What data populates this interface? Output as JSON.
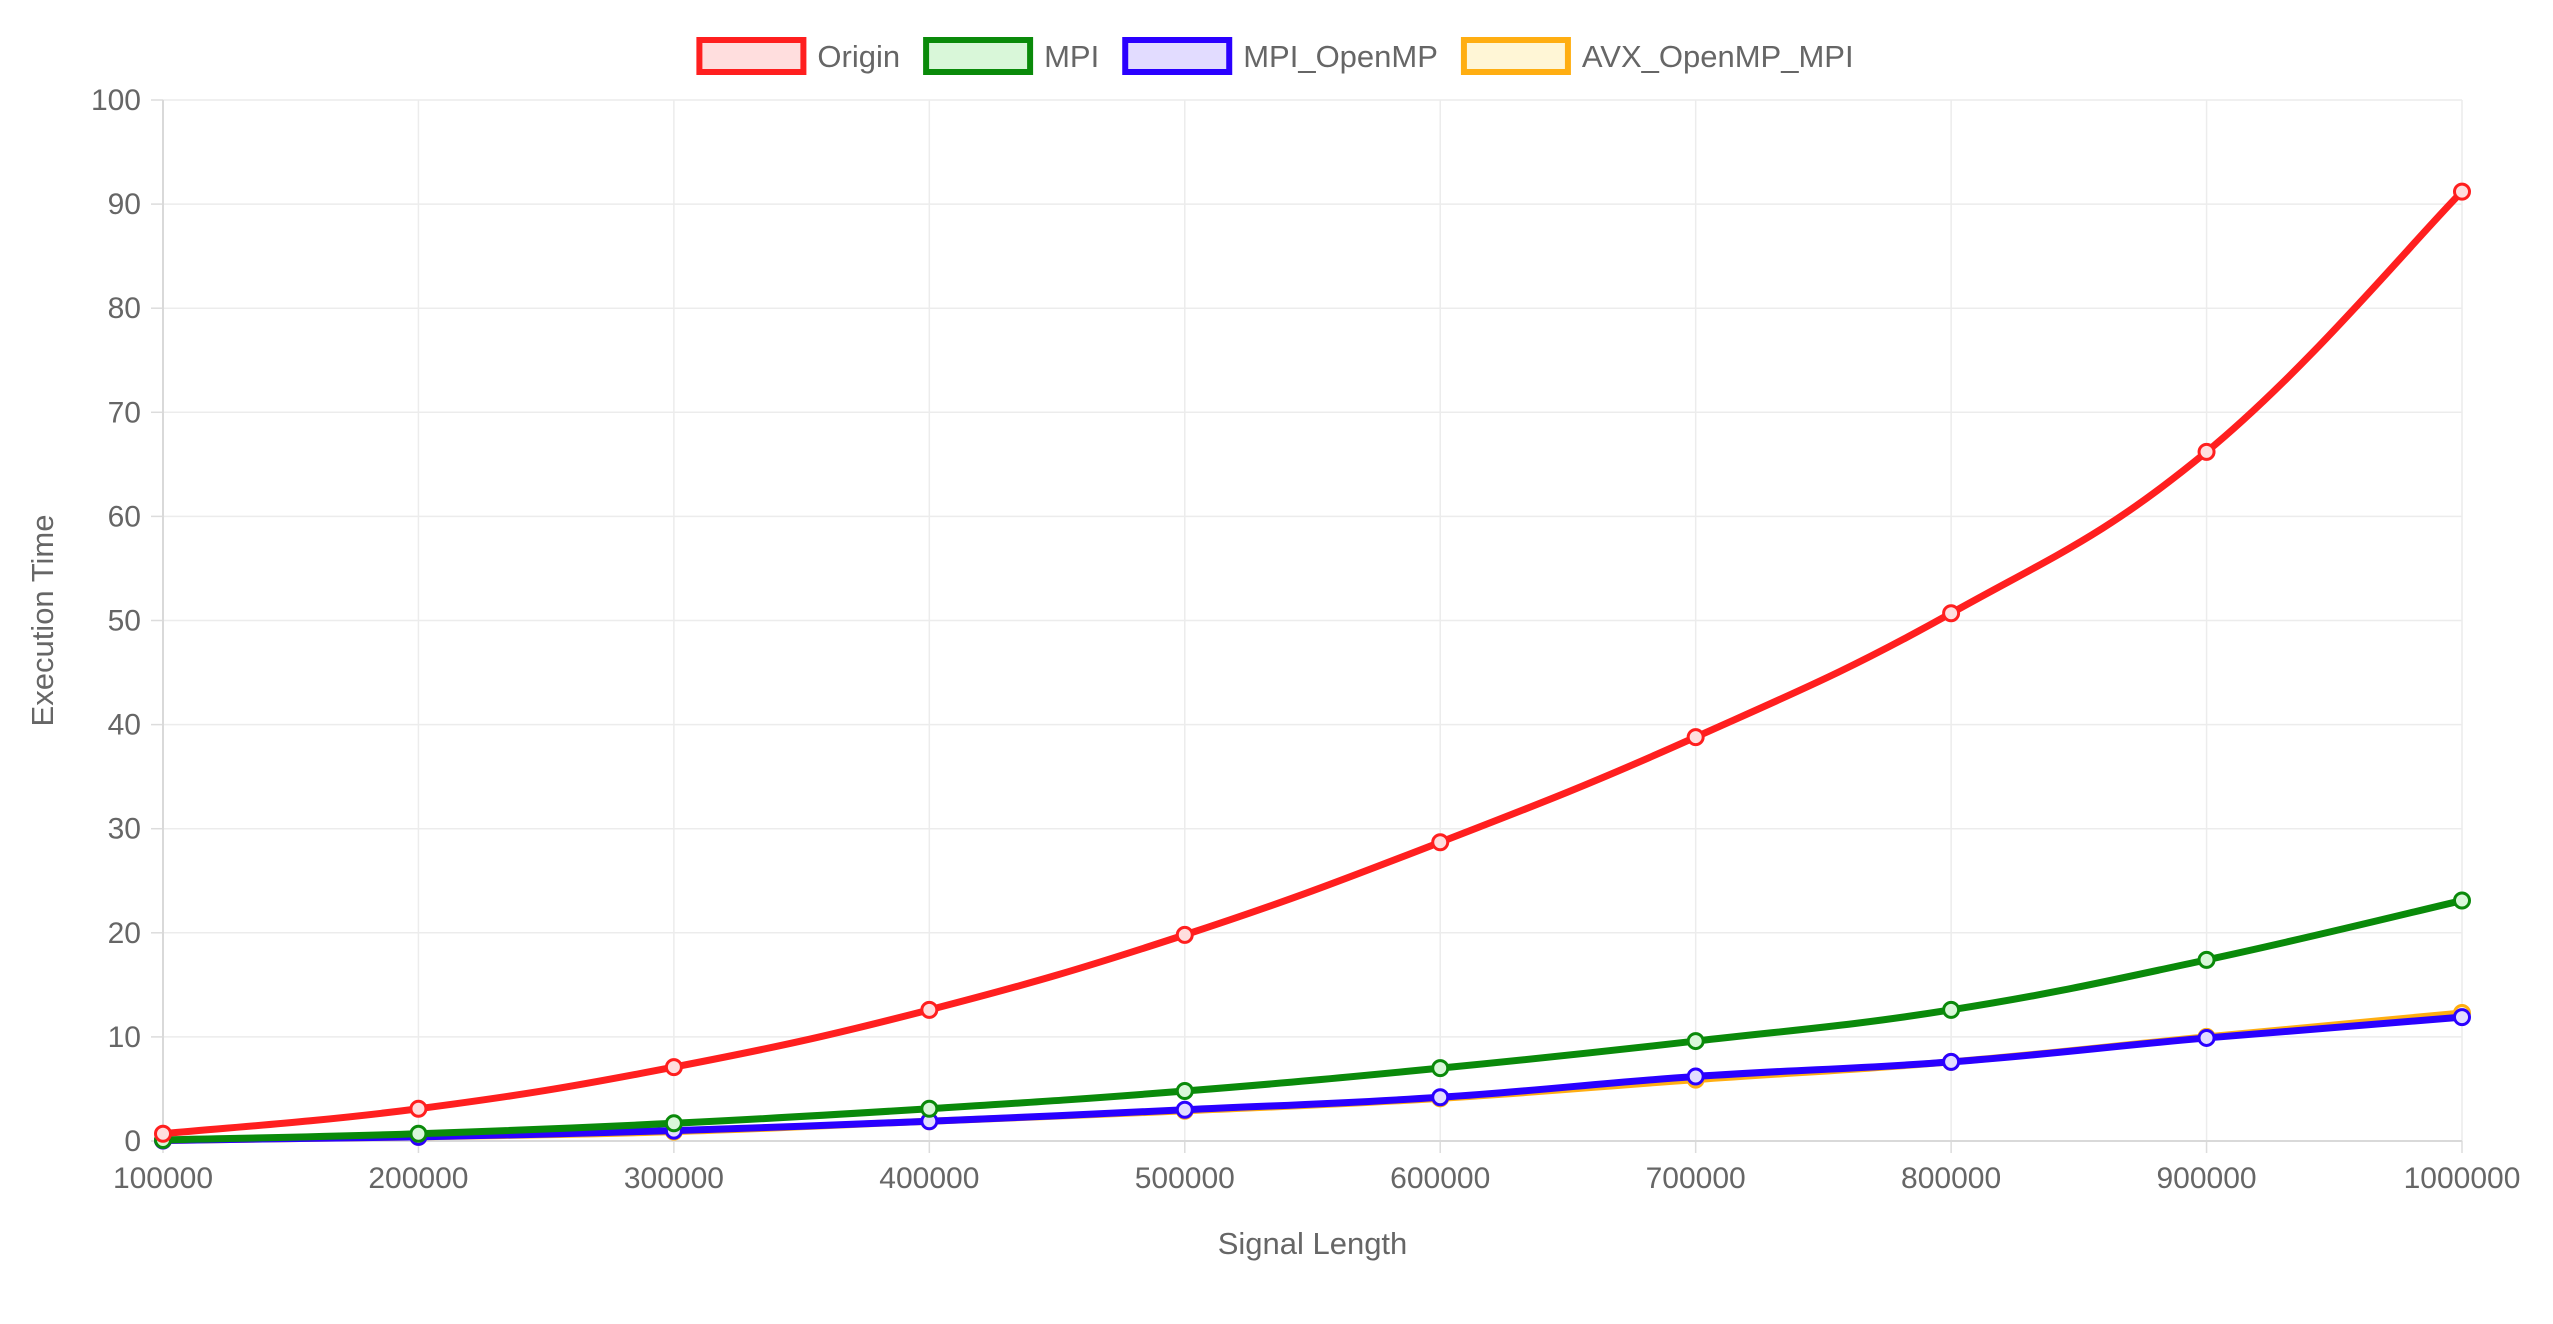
{
  "chart_data": {
    "type": "line",
    "title": "",
    "xlabel": "Signal Length",
    "ylabel": "Execution Time",
    "x": [
      "100000",
      "200000",
      "300000",
      "400000",
      "500000",
      "600000",
      "700000",
      "800000",
      "900000",
      "1000000"
    ],
    "ylim": [
      0,
      100
    ],
    "yticks": [
      "0",
      "10",
      "20",
      "30",
      "40",
      "50",
      "60",
      "70",
      "80",
      "90",
      "100"
    ],
    "grid": true,
    "legend_position": "top",
    "series": [
      {
        "name": "Origin",
        "color": "#ff1f1f",
        "fill": "#ffdede",
        "values": [
          0.7,
          3.1,
          7.1,
          12.6,
          19.8,
          28.7,
          38.8,
          50.7,
          66.2,
          91.2
        ]
      },
      {
        "name": "MPI",
        "color": "#0a8a0a",
        "fill": "#d9f7d9",
        "values": [
          0.1,
          0.7,
          1.7,
          3.1,
          4.8,
          7.0,
          9.6,
          12.6,
          17.4,
          23.1
        ]
      },
      {
        "name": "MPI_OpenMP",
        "color": "#2a00ff",
        "fill": "#e2dcff",
        "values": [
          0.05,
          0.4,
          1.0,
          1.9,
          3.0,
          4.2,
          6.2,
          7.6,
          9.9,
          11.9
        ]
      },
      {
        "name": "AVX_OpenMP_MPI",
        "color": "#ffae12",
        "fill": "#fff6d6",
        "values": [
          0.05,
          0.4,
          0.9,
          1.9,
          2.9,
          4.1,
          5.9,
          7.6,
          10.0,
          12.3
        ]
      }
    ]
  }
}
